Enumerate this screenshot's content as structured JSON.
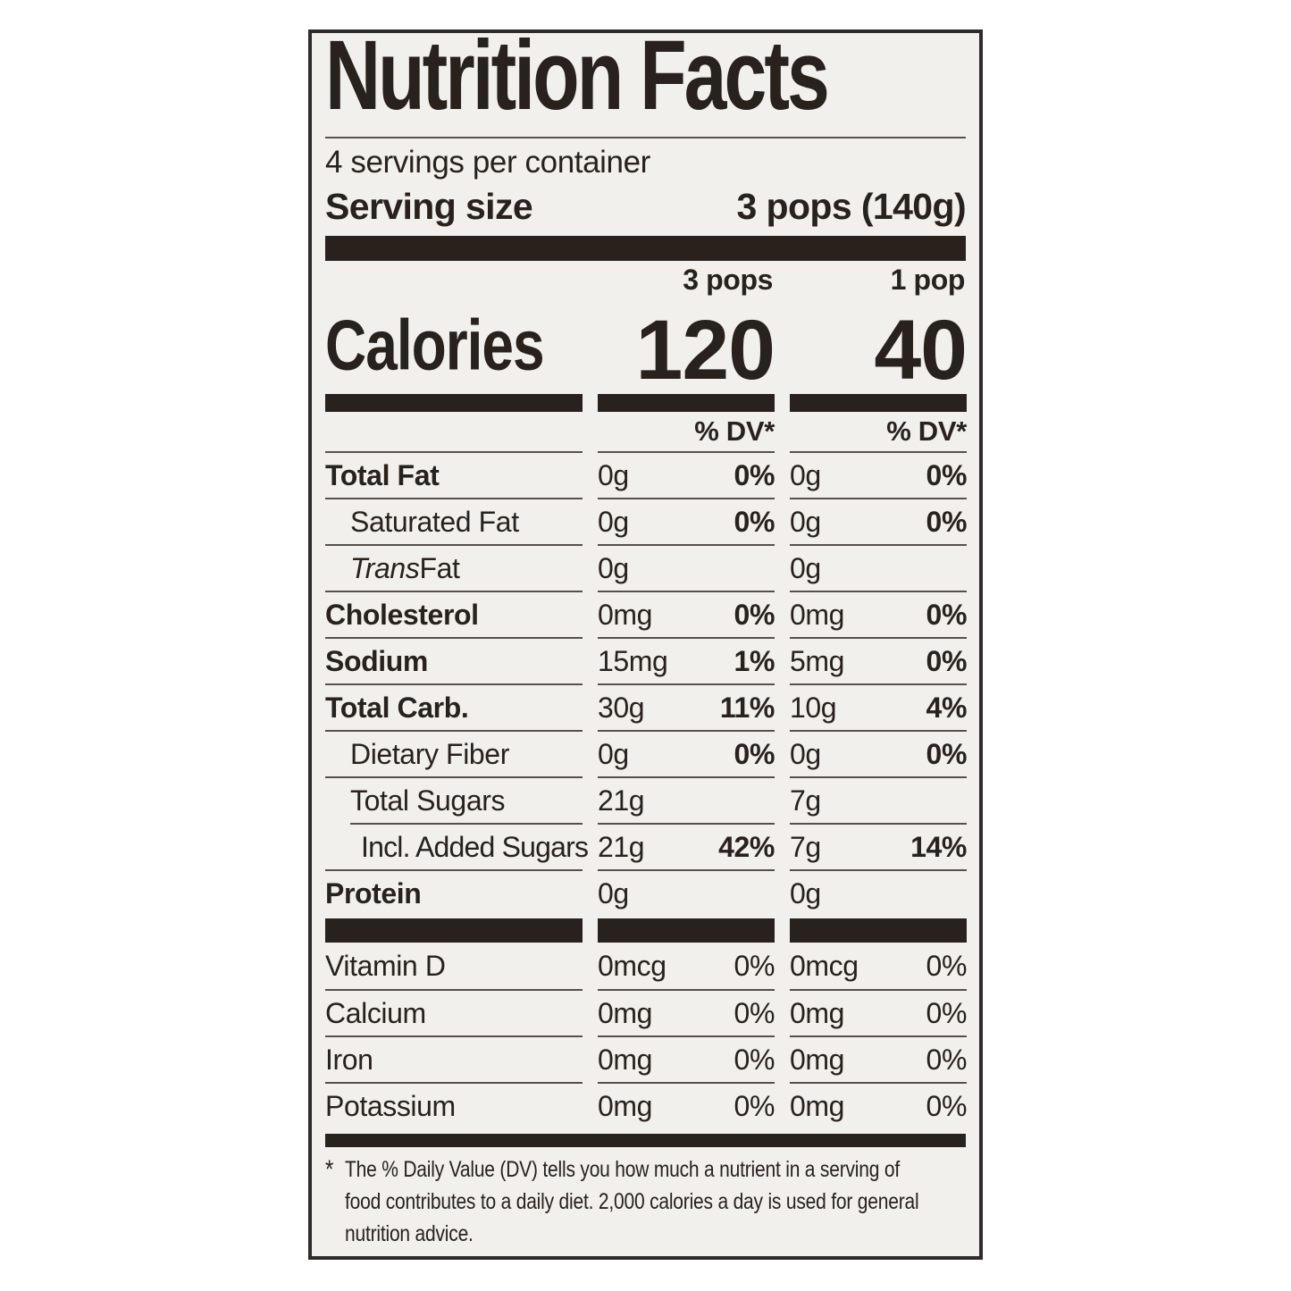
{
  "colors": {
    "ink": "#29211b",
    "line": "#57504a",
    "label_bg": "#f2f0ed",
    "page_bg": "#ffffff"
  },
  "label": {
    "title": "Nutrition Facts",
    "servings_per_container": "4 servings per container",
    "serving_size_label": "Serving size",
    "serving_size_value": "3 pops (140g)",
    "calories_label": "Calories",
    "columns": [
      {
        "header": "3 pops",
        "calories": "120",
        "dv_header": "% DV*"
      },
      {
        "header": "1 pop",
        "calories": "40",
        "dv_header": "% DV*"
      }
    ],
    "rows": [
      {
        "name": "Total Fat",
        "bold": true,
        "indent": 0,
        "cols": [
          {
            "amt": "0g",
            "pct": "0%",
            "pct_bold": true
          },
          {
            "amt": "0g",
            "pct": "0%",
            "pct_bold": true
          }
        ]
      },
      {
        "name": "Saturated Fat",
        "bold": false,
        "indent": 1,
        "cols": [
          {
            "amt": "0g",
            "pct": "0%",
            "pct_bold": true
          },
          {
            "amt": "0g",
            "pct": "0%",
            "pct_bold": true
          }
        ]
      },
      {
        "name_italic": "Trans",
        "name": " Fat",
        "bold": false,
        "indent": 1,
        "cols": [
          {
            "amt": "0g",
            "pct": ""
          },
          {
            "amt": "0g",
            "pct": ""
          }
        ]
      },
      {
        "name": "Cholesterol",
        "bold": true,
        "indent": 0,
        "cols": [
          {
            "amt": "0mg",
            "pct": "0%",
            "pct_bold": true
          },
          {
            "amt": "0mg",
            "pct": "0%",
            "pct_bold": true
          }
        ]
      },
      {
        "name": "Sodium",
        "bold": true,
        "indent": 0,
        "cols": [
          {
            "amt": "15mg",
            "pct": "1%",
            "pct_bold": true
          },
          {
            "amt": "5mg",
            "pct": "0%",
            "pct_bold": true
          }
        ]
      },
      {
        "name": "Total Carb.",
        "bold": true,
        "indent": 0,
        "cols": [
          {
            "amt": "30g",
            "pct": "11%",
            "pct_bold": true
          },
          {
            "amt": "10g",
            "pct": "4%",
            "pct_bold": true
          }
        ]
      },
      {
        "name": "Dietary Fiber",
        "bold": false,
        "indent": 1,
        "cols": [
          {
            "amt": "0g",
            "pct": "0%",
            "pct_bold": true
          },
          {
            "amt": "0g",
            "pct": "0%",
            "pct_bold": true
          }
        ]
      },
      {
        "name": "Total Sugars",
        "bold": false,
        "indent": 1,
        "cols": [
          {
            "amt": "21g",
            "pct": ""
          },
          {
            "amt": "7g",
            "pct": ""
          }
        ]
      },
      {
        "name": "Incl. Added Sugars",
        "bold": false,
        "indent": 2,
        "inset_line": true,
        "cols": [
          {
            "amt": "21g",
            "pct": "42%",
            "pct_bold": true
          },
          {
            "amt": "7g",
            "pct": "14%",
            "pct_bold": true
          }
        ]
      },
      {
        "name": "Protein",
        "bold": true,
        "indent": 0,
        "cols": [
          {
            "amt": "0g",
            "pct": ""
          },
          {
            "amt": "0g",
            "pct": ""
          }
        ]
      }
    ],
    "vitamins": [
      {
        "name": "Vitamin D",
        "cols": [
          {
            "amt": "0mcg",
            "pct": "0%"
          },
          {
            "amt": "0mcg",
            "pct": "0%"
          }
        ]
      },
      {
        "name": "Calcium",
        "cols": [
          {
            "amt": "0mg",
            "pct": "0%"
          },
          {
            "amt": "0mg",
            "pct": "0%"
          }
        ]
      },
      {
        "name": "Iron",
        "cols": [
          {
            "amt": "0mg",
            "pct": "0%"
          },
          {
            "amt": "0mg",
            "pct": "0%"
          }
        ]
      },
      {
        "name": "Potassium",
        "cols": [
          {
            "amt": "0mg",
            "pct": "0%"
          },
          {
            "amt": "0mg",
            "pct": "0%"
          }
        ]
      }
    ],
    "footnote_star": "*",
    "footnote_lines": [
      "The % Daily Value (DV) tells you how much a nutrient in a serving of",
      "food contributes to a daily diet. 2,000 calories a day is used for general",
      "nutrition advice."
    ]
  }
}
